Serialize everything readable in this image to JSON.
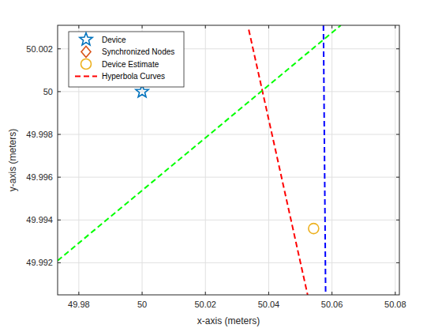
{
  "chart_data": {
    "type": "scatter",
    "xlabel": "x-axis (meters)",
    "ylabel": "y-axis (meters)",
    "xlim": [
      49.9733,
      50.0813
    ],
    "ylim": [
      49.9905,
      50.0031
    ],
    "xticks": [
      49.98,
      50,
      50.02,
      50.04,
      50.06,
      50.08
    ],
    "yticks": [
      49.992,
      49.994,
      49.996,
      49.998,
      50,
      50.002
    ],
    "grid": true,
    "legend": "northwest",
    "series": [
      {
        "name": "Device",
        "type": "scatter",
        "marker": "star",
        "color": "#0072bd",
        "x": [
          50
        ],
        "values": [
          50
        ]
      },
      {
        "name": "Synchronized Nodes",
        "type": "scatter",
        "marker": "diamond",
        "color": "#d95319",
        "x": [],
        "values": []
      },
      {
        "name": "Device Estimate",
        "type": "scatter",
        "marker": "circle",
        "color": "#edb120",
        "x": [
          50.0542
        ],
        "values": [
          49.9936
        ]
      },
      {
        "name": "Hyperbola Curves",
        "type": "line",
        "line_style": "dashed",
        "color": "#ff0000",
        "x": [
          50.0337,
          50.0523
        ],
        "values": [
          50.0029,
          49.9905
        ]
      },
      {
        "type": "line",
        "line_style": "dashed",
        "color": "#00ff00",
        "x": [
          49.9733,
          50.0628
        ],
        "values": [
          49.9921,
          50.0031
        ]
      },
      {
        "type": "line",
        "line_style": "dashed",
        "color": "#0000ff",
        "x": [
          50.0573,
          50.058
        ],
        "values": [
          50.0031,
          49.9905
        ]
      }
    ]
  }
}
